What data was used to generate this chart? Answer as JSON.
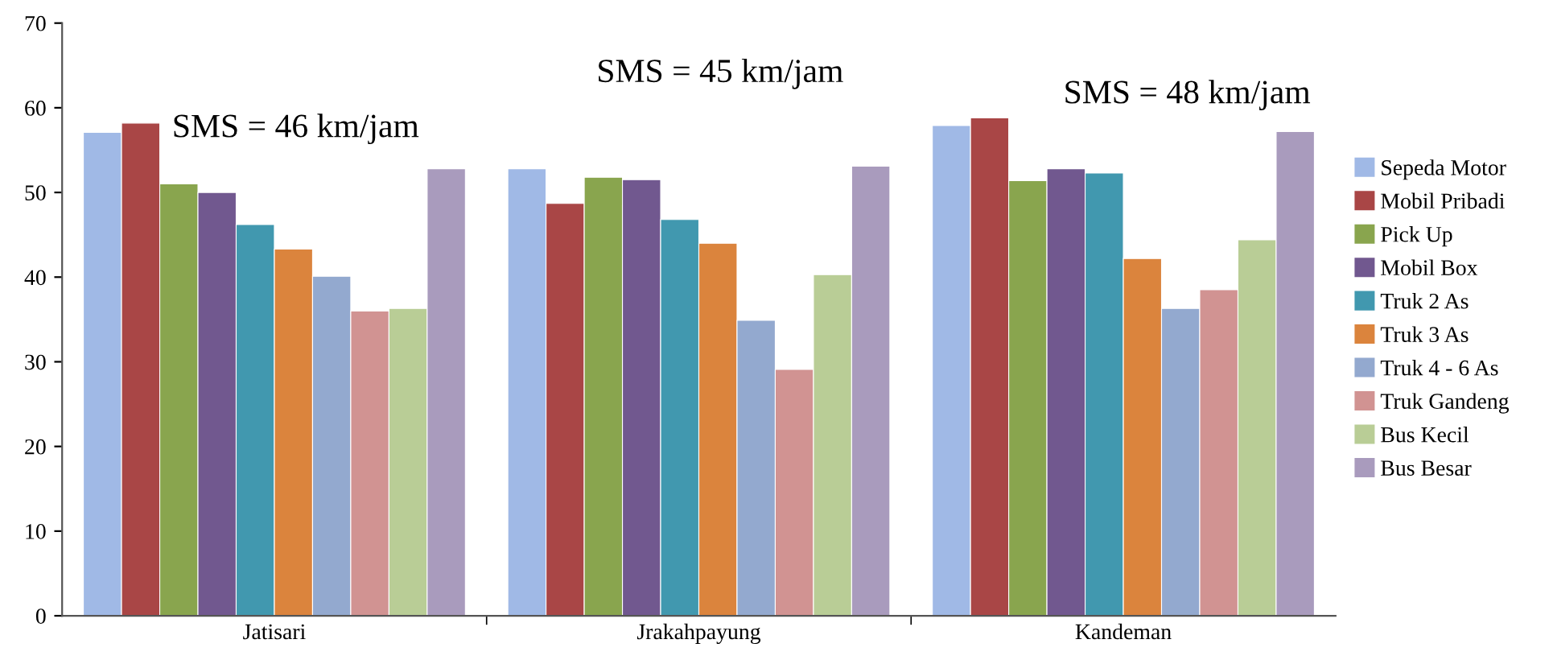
{
  "chart_data": {
    "type": "bar",
    "categories": [
      "Jatisari",
      "Jrakahpayung",
      "Kandeman"
    ],
    "series": [
      {
        "name": "Sepeda Motor",
        "color": "#a0b9e6",
        "values": [
          57.1,
          52.8,
          57.9
        ]
      },
      {
        "name": "Mobil Pribadi",
        "color": "#a94646",
        "values": [
          58.2,
          48.7,
          58.8
        ]
      },
      {
        "name": "Pick Up",
        "color": "#89a54e",
        "values": [
          51.0,
          51.8,
          51.4
        ]
      },
      {
        "name": "Mobil Box",
        "color": "#71588f",
        "values": [
          50.0,
          51.5,
          52.8
        ]
      },
      {
        "name": "Truk 2 As",
        "color": "#4198af",
        "values": [
          46.2,
          46.8,
          52.3
        ]
      },
      {
        "name": "Truk 3 As",
        "color": "#db843d",
        "values": [
          43.3,
          44.0,
          42.2
        ]
      },
      {
        "name": "Truk 4 - 6 As",
        "color": "#93a9cf",
        "values": [
          40.1,
          34.9,
          36.3
        ]
      },
      {
        "name": "Truk Gandeng",
        "color": "#d19392",
        "values": [
          36.0,
          29.1,
          38.5
        ]
      },
      {
        "name": "Bus Kecil",
        "color": "#b9cd96",
        "values": [
          36.3,
          40.3,
          44.4
        ]
      },
      {
        "name": "Bus Besar",
        "color": "#a99bbd",
        "values": [
          52.8,
          53.1,
          57.2
        ]
      }
    ],
    "annotations": [
      "SMS = 46 km/jam",
      "SMS = 45 km/jam",
      "SMS = 48 km/jam"
    ],
    "ylim": [
      0,
      70
    ],
    "yticks": [
      0,
      10,
      20,
      30,
      40,
      50,
      60,
      70
    ],
    "grid": false,
    "legend": "right"
  }
}
